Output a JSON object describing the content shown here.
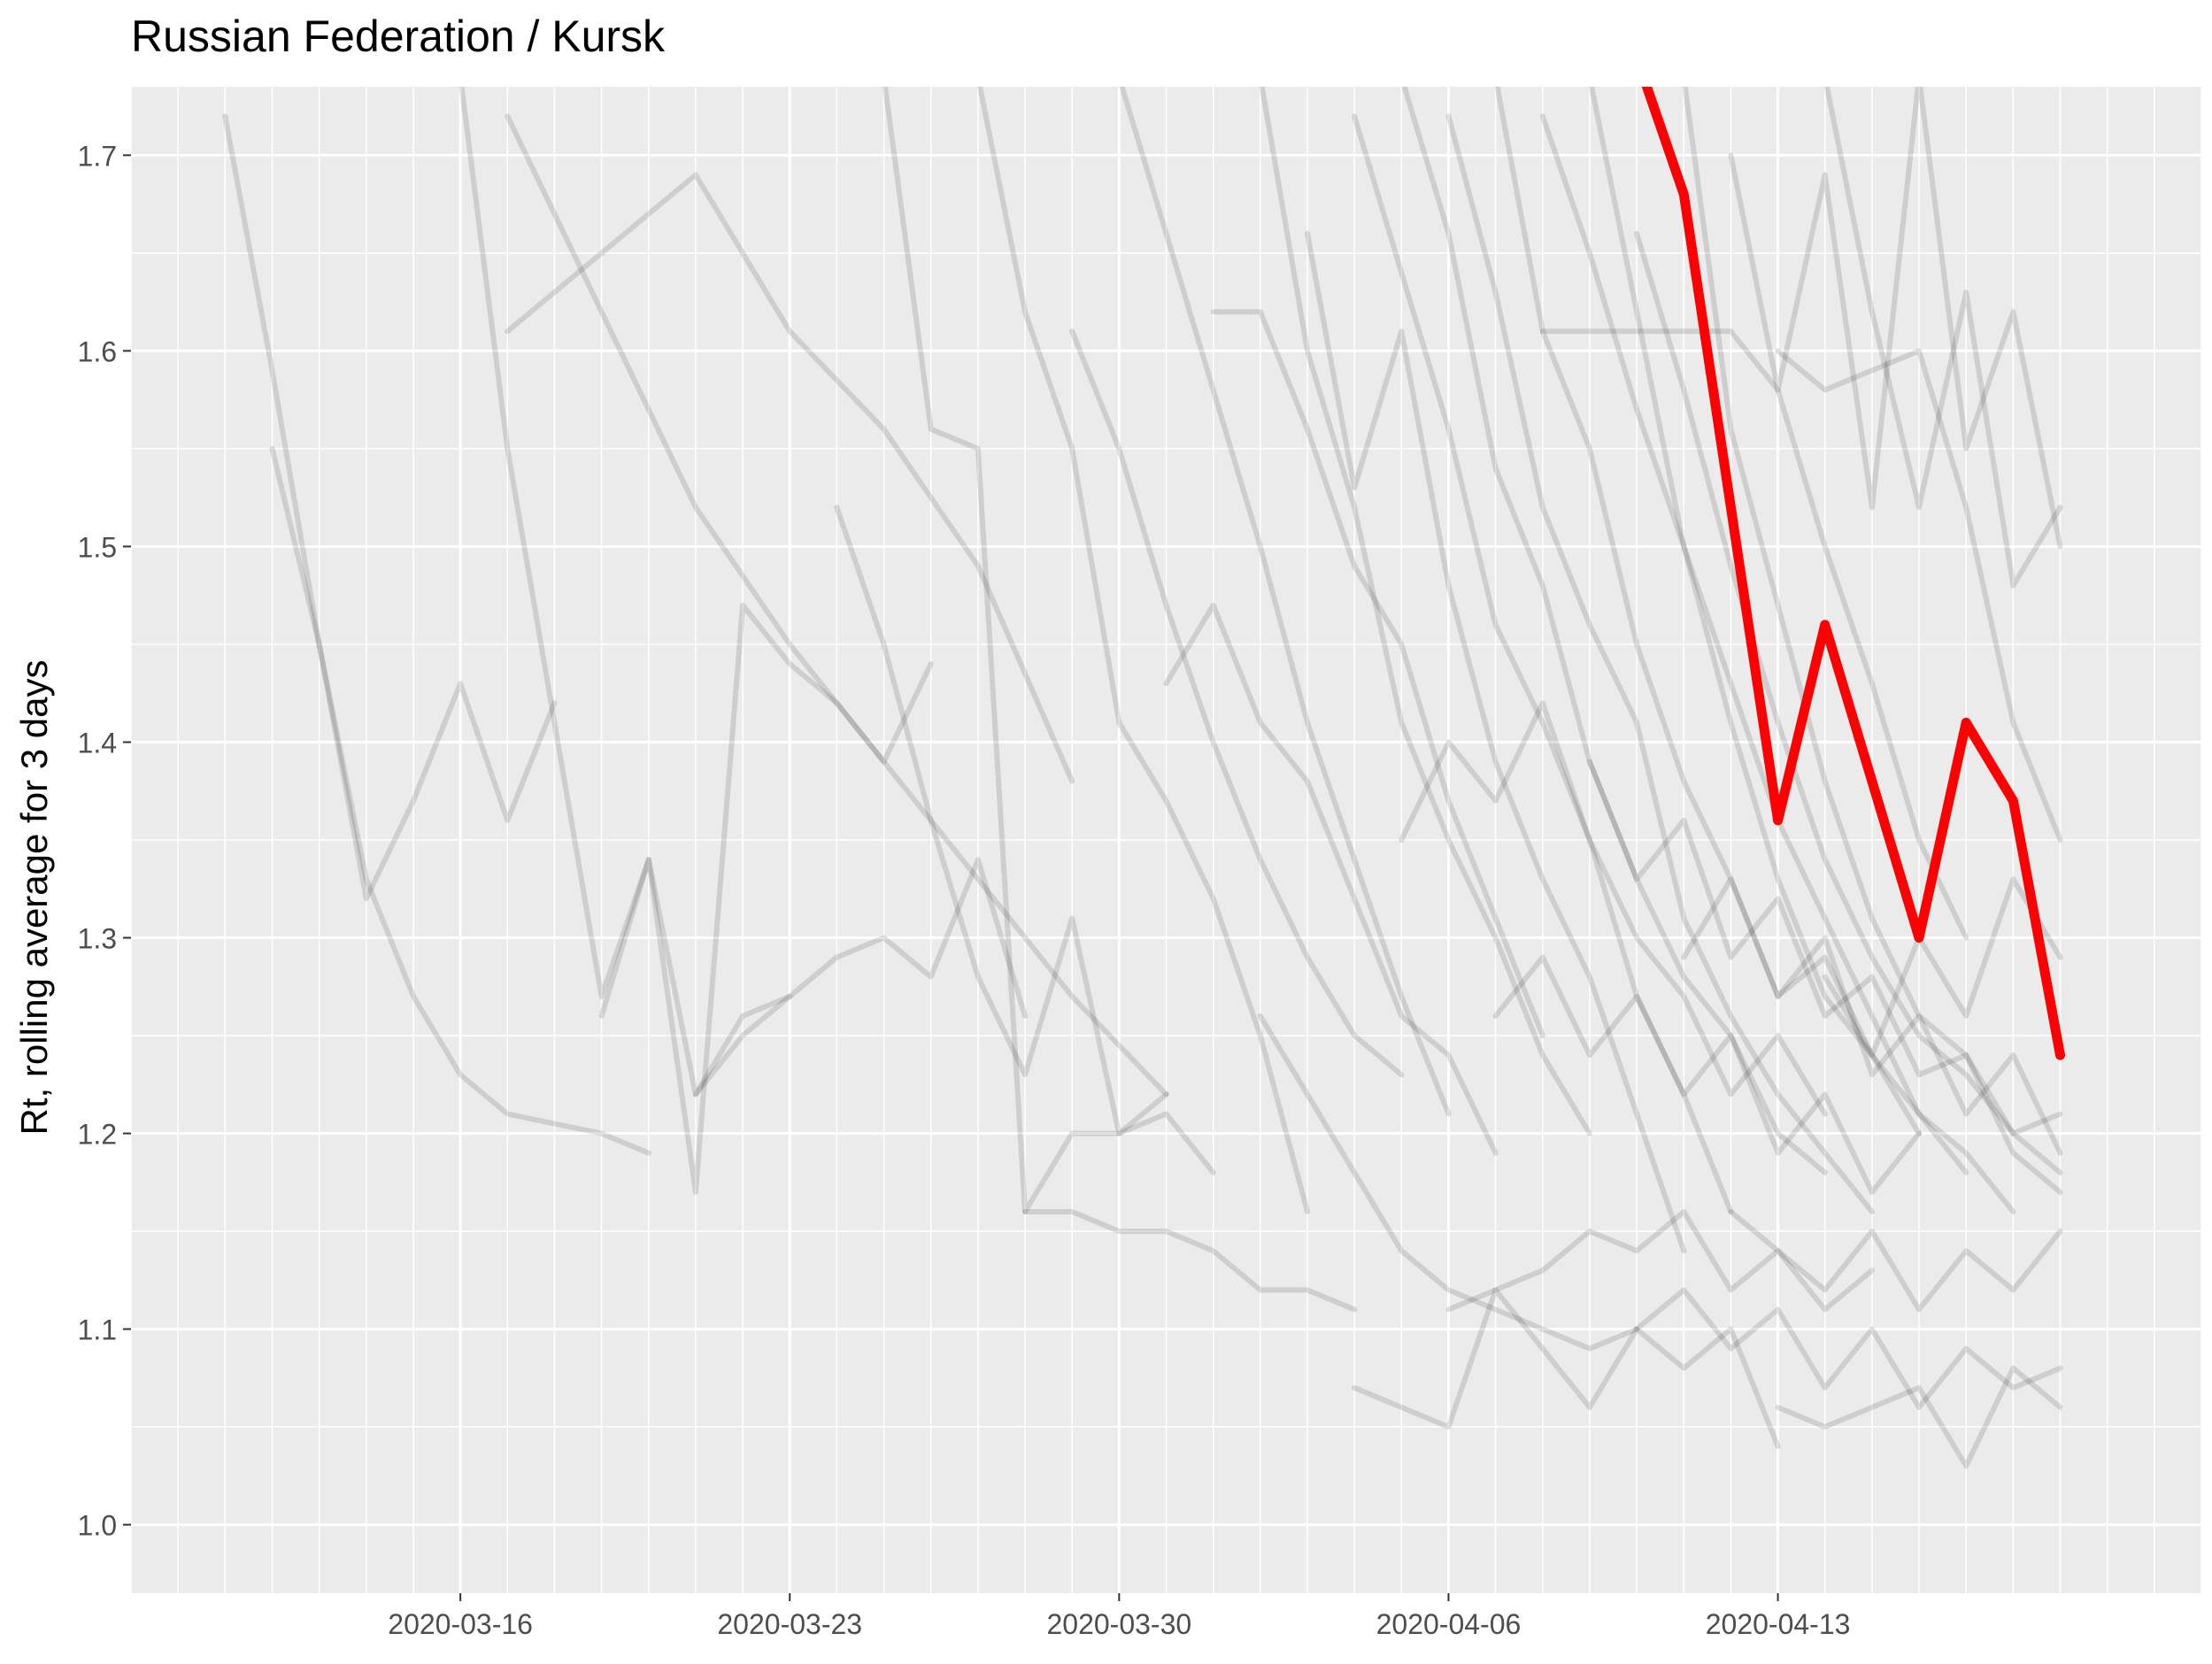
{
  "chart_data": {
    "type": "line",
    "title": "Russian Federation / Kursk",
    "xlabel": "",
    "ylabel": "Rt, rolling average for 3 days",
    "x_ticks": [
      "2020-03-16",
      "2020-03-23",
      "2020-03-30",
      "2020-04-06",
      "2020-04-13"
    ],
    "y_ticks": [
      "1.0",
      "1.1",
      "1.2",
      "1.3",
      "1.4",
      "1.5",
      "1.6",
      "1.7"
    ],
    "xlim": [
      "2020-03-09",
      "2020-04-22"
    ],
    "ylim": [
      0.965,
      1.735
    ],
    "grid": true,
    "legend": "none",
    "colors": {
      "panel": "#ebebeb",
      "grid": "#ffffff",
      "highlight": "#ff0000",
      "other_regions": "#000000",
      "tick_text": "#4d4d4d",
      "title_text": "#000000"
    },
    "highlight_series": {
      "name": "Kursk",
      "x": [
        "2020-04-10",
        "2020-04-11",
        "2020-04-12",
        "2020-04-13",
        "2020-04-14",
        "2020-04-15",
        "2020-04-16",
        "2020-04-17",
        "2020-04-18",
        "2020-04-19"
      ],
      "y": [
        1.75,
        1.68,
        1.52,
        1.36,
        1.46,
        1.38,
        1.3,
        1.41,
        1.37,
        1.24
      ]
    },
    "background_series": [
      {
        "x": [
          "2020-03-11",
          "2020-03-12",
          "2020-03-13",
          "2020-03-14",
          "2020-03-15",
          "2020-03-16",
          "2020-03-17",
          "2020-03-19",
          "2020-03-20"
        ],
        "y": [
          1.72,
          1.59,
          1.45,
          1.33,
          1.27,
          1.23,
          1.21,
          1.2,
          1.19
        ]
      },
      {
        "x": [
          "2020-03-12",
          "2020-03-13",
          "2020-03-14",
          "2020-03-15",
          "2020-03-16",
          "2020-03-17",
          "2020-03-18"
        ],
        "y": [
          1.55,
          1.45,
          1.32,
          1.37,
          1.43,
          1.36,
          1.42
        ]
      },
      {
        "x": [
          "2020-03-17",
          "2020-03-19",
          "2020-03-21",
          "2020-03-23",
          "2020-03-25",
          "2020-03-27",
          "2020-03-29"
        ],
        "y": [
          1.61,
          1.65,
          1.69,
          1.61,
          1.56,
          1.49,
          1.38
        ]
      },
      {
        "x": [
          "2020-03-16",
          "2020-03-17",
          "2020-03-18",
          "2020-03-19",
          "2020-03-20",
          "2020-03-21",
          "2020-03-22",
          "2020-03-23"
        ],
        "y": [
          1.74,
          1.55,
          1.41,
          1.27,
          1.34,
          1.22,
          1.25,
          1.27
        ]
      },
      {
        "x": [
          "2020-03-17",
          "2020-03-19",
          "2020-03-21",
          "2020-03-23",
          "2020-03-25",
          "2020-03-27",
          "2020-03-29",
          "2020-03-31"
        ],
        "y": [
          1.72,
          1.62,
          1.52,
          1.45,
          1.39,
          1.33,
          1.27,
          1.22
        ]
      },
      {
        "x": [
          "2020-03-19",
          "2020-03-20",
          "2020-03-21",
          "2020-03-22",
          "2020-03-23",
          "2020-03-24",
          "2020-03-25",
          "2020-03-26"
        ],
        "y": [
          1.26,
          1.34,
          1.17,
          1.47,
          1.44,
          1.42,
          1.39,
          1.44
        ]
      },
      {
        "x": [
          "2020-03-21",
          "2020-03-22",
          "2020-03-23",
          "2020-03-24",
          "2020-03-25",
          "2020-03-26",
          "2020-03-27",
          "2020-03-28"
        ],
        "y": [
          1.22,
          1.26,
          1.27,
          1.29,
          1.3,
          1.28,
          1.34,
          1.26
        ]
      },
      {
        "x": [
          "2020-03-24",
          "2020-03-25",
          "2020-03-26",
          "2020-03-27",
          "2020-03-28",
          "2020-03-29",
          "2020-03-30",
          "2020-03-31"
        ],
        "y": [
          1.52,
          1.45,
          1.36,
          1.28,
          1.23,
          1.31,
          1.2,
          1.22
        ]
      },
      {
        "x": [
          "2020-03-25",
          "2020-03-26",
          "2020-03-27",
          "2020-03-28",
          "2020-03-29",
          "2020-03-30",
          "2020-03-31",
          "2020-04-01"
        ],
        "y": [
          1.74,
          1.56,
          1.55,
          1.16,
          1.2,
          1.2,
          1.21,
          1.18
        ]
      },
      {
        "x": [
          "2020-03-27",
          "2020-03-28",
          "2020-03-29",
          "2020-03-30",
          "2020-03-31",
          "2020-04-01",
          "2020-04-02",
          "2020-04-03"
        ],
        "y": [
          1.74,
          1.62,
          1.55,
          1.41,
          1.37,
          1.32,
          1.25,
          1.16
        ]
      },
      {
        "x": [
          "2020-03-28",
          "2020-03-29",
          "2020-03-30",
          "2020-03-31",
          "2020-04-01",
          "2020-04-02",
          "2020-04-03",
          "2020-04-04"
        ],
        "y": [
          1.16,
          1.16,
          1.15,
          1.15,
          1.14,
          1.12,
          1.12,
          1.11
        ]
      },
      {
        "x": [
          "2020-03-29",
          "2020-03-30",
          "2020-03-31",
          "2020-04-01",
          "2020-04-02",
          "2020-04-03",
          "2020-04-04",
          "2020-04-05"
        ],
        "y": [
          1.61,
          1.55,
          1.47,
          1.4,
          1.34,
          1.29,
          1.25,
          1.23
        ]
      },
      {
        "x": [
          "2020-03-30",
          "2020-03-31",
          "2020-04-01",
          "2020-04-02",
          "2020-04-03",
          "2020-04-04",
          "2020-04-05",
          "2020-04-06"
        ],
        "y": [
          1.74,
          1.66,
          1.58,
          1.5,
          1.41,
          1.34,
          1.27,
          1.21
        ]
      },
      {
        "x": [
          "2020-03-31",
          "2020-04-01",
          "2020-04-02",
          "2020-04-03",
          "2020-04-04",
          "2020-04-05",
          "2020-04-06",
          "2020-04-07"
        ],
        "y": [
          1.43,
          1.47,
          1.41,
          1.38,
          1.32,
          1.26,
          1.24,
          1.19
        ]
      },
      {
        "x": [
          "2020-04-01",
          "2020-04-02",
          "2020-04-03",
          "2020-04-04",
          "2020-04-05",
          "2020-04-06",
          "2020-04-07",
          "2020-04-08"
        ],
        "y": [
          1.62,
          1.62,
          1.56,
          1.49,
          1.45,
          1.37,
          1.31,
          1.25
        ]
      },
      {
        "x": [
          "2020-04-02",
          "2020-04-03",
          "2020-04-04",
          "2020-04-05",
          "2020-04-06",
          "2020-04-07",
          "2020-04-08",
          "2020-04-09"
        ],
        "y": [
          1.74,
          1.6,
          1.52,
          1.41,
          1.35,
          1.3,
          1.24,
          1.2
        ]
      },
      {
        "x": [
          "2020-04-02",
          "2020-04-03",
          "2020-04-04",
          "2020-04-05",
          "2020-04-06",
          "2020-04-07",
          "2020-04-08",
          "2020-04-09",
          "2020-04-10"
        ],
        "y": [
          1.26,
          1.22,
          1.18,
          1.14,
          1.12,
          1.11,
          1.1,
          1.09,
          1.1
        ]
      },
      {
        "x": [
          "2020-04-03",
          "2020-04-04",
          "2020-04-05",
          "2020-04-06",
          "2020-04-07",
          "2020-04-08",
          "2020-04-09",
          "2020-04-10",
          "2020-04-11"
        ],
        "y": [
          1.66,
          1.53,
          1.61,
          1.48,
          1.39,
          1.33,
          1.28,
          1.21,
          1.14
        ]
      },
      {
        "x": [
          "2020-04-04",
          "2020-04-05",
          "2020-04-06",
          "2020-04-07",
          "2020-04-08",
          "2020-04-09",
          "2020-04-10",
          "2020-04-11",
          "2020-04-12"
        ],
        "y": [
          1.72,
          1.64,
          1.56,
          1.46,
          1.41,
          1.35,
          1.27,
          1.22,
          1.16
        ]
      },
      {
        "x": [
          "2020-04-04",
          "2020-04-05",
          "2020-04-06",
          "2020-04-07",
          "2020-04-08",
          "2020-04-09",
          "2020-04-10",
          "2020-04-11",
          "2020-04-12",
          "2020-04-13"
        ],
        "y": [
          1.07,
          1.06,
          1.05,
          1.12,
          1.09,
          1.06,
          1.1,
          1.08,
          1.1,
          1.04
        ]
      },
      {
        "x": [
          "2020-04-05",
          "2020-04-06",
          "2020-04-07",
          "2020-04-08",
          "2020-04-09",
          "2020-04-10",
          "2020-04-11",
          "2020-04-12",
          "2020-04-13",
          "2020-04-14"
        ],
        "y": [
          1.74,
          1.66,
          1.54,
          1.48,
          1.39,
          1.33,
          1.28,
          1.25,
          1.2,
          1.18
        ]
      },
      {
        "x": [
          "2020-04-05",
          "2020-04-06",
          "2020-04-07",
          "2020-04-08",
          "2020-04-09",
          "2020-04-10",
          "2020-04-11",
          "2020-04-12",
          "2020-04-13",
          "2020-04-14"
        ],
        "y": [
          1.35,
          1.4,
          1.37,
          1.42,
          1.35,
          1.3,
          1.27,
          1.22,
          1.25,
          1.21
        ]
      },
      {
        "x": [
          "2020-04-06",
          "2020-04-07",
          "2020-04-08",
          "2020-04-09",
          "2020-04-10",
          "2020-04-11",
          "2020-04-12",
          "2020-04-13",
          "2020-04-14",
          "2020-04-15"
        ],
        "y": [
          1.72,
          1.63,
          1.52,
          1.46,
          1.41,
          1.31,
          1.26,
          1.22,
          1.19,
          1.16
        ]
      },
      {
        "x": [
          "2020-04-06",
          "2020-04-07",
          "2020-04-08",
          "2020-04-09",
          "2020-04-10",
          "2020-04-11",
          "2020-04-12",
          "2020-04-13",
          "2020-04-14",
          "2020-04-15"
        ],
        "y": [
          1.11,
          1.12,
          1.13,
          1.15,
          1.14,
          1.16,
          1.12,
          1.14,
          1.11,
          1.13
        ]
      },
      {
        "x": [
          "2020-04-07",
          "2020-04-08",
          "2020-04-09",
          "2020-04-10",
          "2020-04-11",
          "2020-04-12",
          "2020-04-13",
          "2020-04-14",
          "2020-04-15",
          "2020-04-16"
        ],
        "y": [
          1.74,
          1.61,
          1.55,
          1.45,
          1.38,
          1.33,
          1.27,
          1.29,
          1.24,
          1.2
        ]
      },
      {
        "x": [
          "2020-04-07",
          "2020-04-08",
          "2020-04-09",
          "2020-04-10",
          "2020-04-11",
          "2020-04-12",
          "2020-04-13",
          "2020-04-14",
          "2020-04-15",
          "2020-04-16"
        ],
        "y": [
          1.26,
          1.29,
          1.24,
          1.27,
          1.22,
          1.25,
          1.19,
          1.22,
          1.17,
          1.2
        ]
      },
      {
        "x": [
          "2020-04-08",
          "2020-04-09",
          "2020-04-10",
          "2020-04-11",
          "2020-04-12",
          "2020-04-13",
          "2020-04-14",
          "2020-04-15",
          "2020-04-16",
          "2020-04-17"
        ],
        "y": [
          1.72,
          1.65,
          1.57,
          1.5,
          1.43,
          1.36,
          1.31,
          1.26,
          1.21,
          1.18
        ]
      },
      {
        "x": [
          "2020-04-08",
          "2020-04-09",
          "2020-04-10",
          "2020-04-11",
          "2020-04-12",
          "2020-04-13",
          "2020-04-14",
          "2020-04-15",
          "2020-04-16",
          "2020-04-17"
        ],
        "y": [
          1.61,
          1.61,
          1.61,
          1.61,
          1.61,
          1.58,
          1.5,
          1.43,
          1.35,
          1.3
        ]
      },
      {
        "x": [
          "2020-04-09",
          "2020-04-10",
          "2020-04-11",
          "2020-04-12",
          "2020-04-13",
          "2020-04-14",
          "2020-04-15",
          "2020-04-16",
          "2020-04-17",
          "2020-04-18"
        ],
        "y": [
          1.74,
          1.62,
          1.5,
          1.41,
          1.33,
          1.27,
          1.24,
          1.21,
          1.19,
          1.16
        ]
      },
      {
        "x": [
          "2020-04-09",
          "2020-04-10",
          "2020-04-11",
          "2020-04-12",
          "2020-04-13",
          "2020-04-14",
          "2020-04-15",
          "2020-04-16",
          "2020-04-17",
          "2020-04-18",
          "2020-04-19"
        ],
        "y": [
          1.39,
          1.33,
          1.36,
          1.29,
          1.32,
          1.26,
          1.28,
          1.23,
          1.24,
          1.2,
          1.21
        ]
      },
      {
        "x": [
          "2020-04-10",
          "2020-04-11",
          "2020-04-12",
          "2020-04-13",
          "2020-04-14",
          "2020-04-15",
          "2020-04-16",
          "2020-04-17",
          "2020-04-18",
          "2020-04-19"
        ],
        "y": [
          1.66,
          1.58,
          1.49,
          1.41,
          1.34,
          1.29,
          1.25,
          1.23,
          1.2,
          1.18
        ]
      },
      {
        "x": [
          "2020-04-10",
          "2020-04-11",
          "2020-04-12",
          "2020-04-13",
          "2020-04-14",
          "2020-04-15",
          "2020-04-16",
          "2020-04-17",
          "2020-04-18",
          "2020-04-19"
        ],
        "y": [
          1.1,
          1.12,
          1.09,
          1.11,
          1.07,
          1.1,
          1.06,
          1.09,
          1.07,
          1.08
        ]
      },
      {
        "x": [
          "2020-04-11",
          "2020-04-12",
          "2020-04-13",
          "2020-04-14",
          "2020-04-15",
          "2020-04-16",
          "2020-04-17",
          "2020-04-18",
          "2020-04-19"
        ],
        "y": [
          1.74,
          1.56,
          1.47,
          1.38,
          1.31,
          1.26,
          1.24,
          1.19,
          1.17
        ]
      },
      {
        "x": [
          "2020-04-11",
          "2020-04-12",
          "2020-04-13",
          "2020-04-14",
          "2020-04-15",
          "2020-04-16",
          "2020-04-17",
          "2020-04-18",
          "2020-04-19"
        ],
        "y": [
          1.29,
          1.33,
          1.27,
          1.3,
          1.23,
          1.26,
          1.21,
          1.24,
          1.19
        ]
      },
      {
        "x": [
          "2020-04-12",
          "2020-04-13",
          "2020-04-14",
          "2020-04-15",
          "2020-04-16",
          "2020-04-17",
          "2020-04-18",
          "2020-04-19"
        ],
        "y": [
          1.7,
          1.58,
          1.69,
          1.52,
          1.74,
          1.55,
          1.62,
          1.5
        ]
      },
      {
        "x": [
          "2020-04-12",
          "2020-04-13",
          "2020-04-14",
          "2020-04-15",
          "2020-04-16",
          "2020-04-17",
          "2020-04-18",
          "2020-04-19"
        ],
        "y": [
          1.16,
          1.14,
          1.12,
          1.15,
          1.11,
          1.14,
          1.12,
          1.15
        ]
      },
      {
        "x": [
          "2020-04-13",
          "2020-04-14",
          "2020-04-15",
          "2020-04-16",
          "2020-04-17",
          "2020-04-18",
          "2020-04-19"
        ],
        "y": [
          1.6,
          1.58,
          1.59,
          1.6,
          1.52,
          1.41,
          1.35
        ]
      },
      {
        "x": [
          "2020-04-13",
          "2020-04-14",
          "2020-04-15",
          "2020-04-16",
          "2020-04-17",
          "2020-04-18",
          "2020-04-19"
        ],
        "y": [
          1.06,
          1.05,
          1.06,
          1.07,
          1.03,
          1.08,
          1.06
        ]
      },
      {
        "x": [
          "2020-04-14",
          "2020-04-15",
          "2020-04-16",
          "2020-04-17",
          "2020-04-18",
          "2020-04-19"
        ],
        "y": [
          1.74,
          1.62,
          1.52,
          1.63,
          1.48,
          1.52
        ]
      },
      {
        "x": [
          "2020-04-14",
          "2020-04-15",
          "2020-04-16",
          "2020-04-17",
          "2020-04-18",
          "2020-04-19"
        ],
        "y": [
          1.28,
          1.24,
          1.3,
          1.26,
          1.33,
          1.29
        ]
      }
    ]
  }
}
